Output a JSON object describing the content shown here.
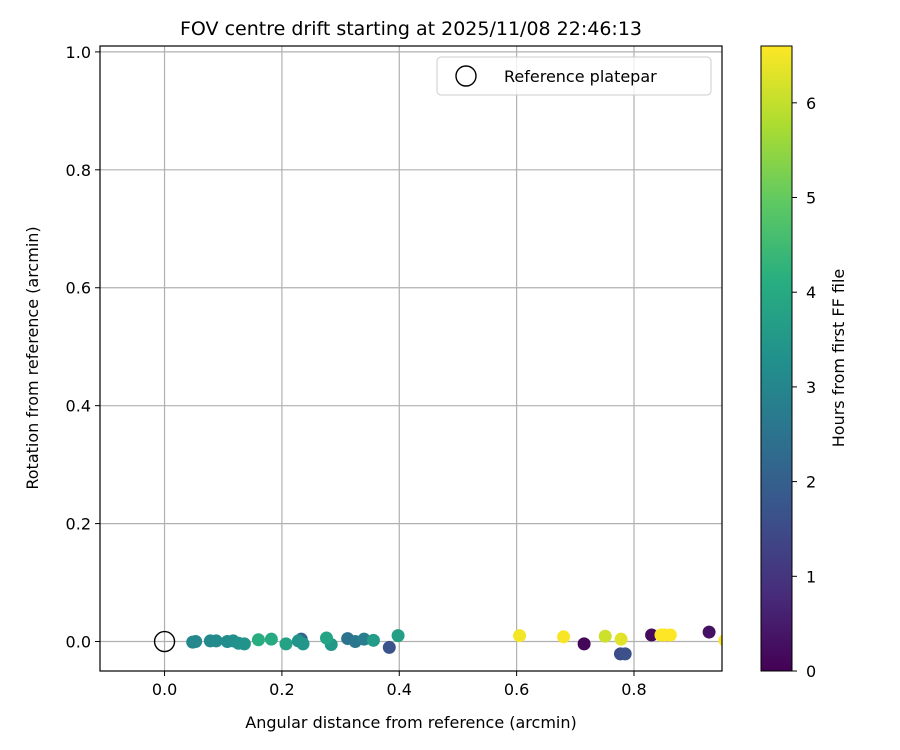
{
  "chart_data": {
    "type": "scatter",
    "title": "FOV centre drift starting at 2025/11/08 22:46:13",
    "xlabel": "Angular distance from reference (arcmin)",
    "ylabel": "Rotation from reference (arcmin)",
    "xlim": [
      -0.11,
      0.95
    ],
    "ylim": [
      -0.05,
      1.01
    ],
    "x_ticks": [
      0.0,
      0.2,
      0.4,
      0.6,
      0.8
    ],
    "x_tick_labels": [
      "0.0",
      "0.2",
      "0.4",
      "0.6",
      "0.8"
    ],
    "y_ticks": [
      0.0,
      0.2,
      0.4,
      0.6,
      0.8,
      1.0
    ],
    "y_tick_labels": [
      "0.0",
      "0.2",
      "0.4",
      "0.6",
      "0.8",
      "1.0"
    ],
    "grid": true,
    "legend": {
      "position": "top-right",
      "entries": [
        "Reference platepar"
      ]
    },
    "reference_point": {
      "x": 0.0,
      "y": 0.0,
      "label": "Reference platepar"
    },
    "colorbar": {
      "label": "Hours from first FF file",
      "colormap": "viridis",
      "range": [
        0,
        6.6
      ],
      "ticks": [
        0,
        1,
        2,
        3,
        4,
        5,
        6
      ],
      "tick_labels": [
        "0",
        "1",
        "2",
        "3",
        "4",
        "5",
        "6"
      ]
    },
    "points": [
      {
        "x": 0.715,
        "y": -0.004,
        "hours": 0.1
      },
      {
        "x": 0.83,
        "y": 0.011,
        "hours": 0.2
      },
      {
        "x": 0.928,
        "y": 0.016,
        "hours": 0.3
      },
      {
        "x": 0.777,
        "y": -0.021,
        "hours": 1.5
      },
      {
        "x": 0.785,
        "y": -0.021,
        "hours": 1.6
      },
      {
        "x": 0.383,
        "y": -0.01,
        "hours": 1.7
      },
      {
        "x": 0.233,
        "y": 0.004,
        "hours": 2.2
      },
      {
        "x": 0.312,
        "y": 0.005,
        "hours": 2.5
      },
      {
        "x": 0.325,
        "y": 0.0,
        "hours": 2.6
      },
      {
        "x": 0.34,
        "y": 0.004,
        "hours": 2.8
      },
      {
        "x": 0.048,
        "y": -0.001,
        "hours": 3.0
      },
      {
        "x": 0.053,
        "y": 0.0,
        "hours": 3.05
      },
      {
        "x": 0.078,
        "y": 0.001,
        "hours": 3.1
      },
      {
        "x": 0.088,
        "y": 0.001,
        "hours": 3.15
      },
      {
        "x": 0.107,
        "y": 0.0,
        "hours": 3.2
      },
      {
        "x": 0.117,
        "y": 0.001,
        "hours": 3.25
      },
      {
        "x": 0.126,
        "y": -0.003,
        "hours": 3.3
      },
      {
        "x": 0.136,
        "y": -0.004,
        "hours": 3.35
      },
      {
        "x": 0.228,
        "y": 0.001,
        "hours": 3.4
      },
      {
        "x": 0.236,
        "y": -0.004,
        "hours": 3.45
      },
      {
        "x": 0.284,
        "y": -0.005,
        "hours": 3.5
      },
      {
        "x": 0.356,
        "y": 0.002,
        "hours": 3.6
      },
      {
        "x": 0.398,
        "y": 0.01,
        "hours": 3.7
      },
      {
        "x": 0.207,
        "y": -0.004,
        "hours": 3.75
      },
      {
        "x": 0.276,
        "y": 0.006,
        "hours": 3.8
      },
      {
        "x": 0.182,
        "y": 0.004,
        "hours": 4.0
      },
      {
        "x": 0.16,
        "y": 0.003,
        "hours": 4.1
      },
      {
        "x": 0.751,
        "y": 0.009,
        "hours": 6.1
      },
      {
        "x": 0.778,
        "y": 0.004,
        "hours": 6.3
      },
      {
        "x": 0.605,
        "y": 0.01,
        "hours": 6.5
      },
      {
        "x": 0.68,
        "y": 0.008,
        "hours": 6.55
      },
      {
        "x": 0.846,
        "y": 0.011,
        "hours": 6.6
      },
      {
        "x": 0.852,
        "y": 0.011,
        "hours": 6.6
      },
      {
        "x": 0.862,
        "y": 0.011,
        "hours": 6.6
      },
      {
        "x": 0.955,
        "y": 0.002,
        "hours": 6.6
      }
    ]
  }
}
